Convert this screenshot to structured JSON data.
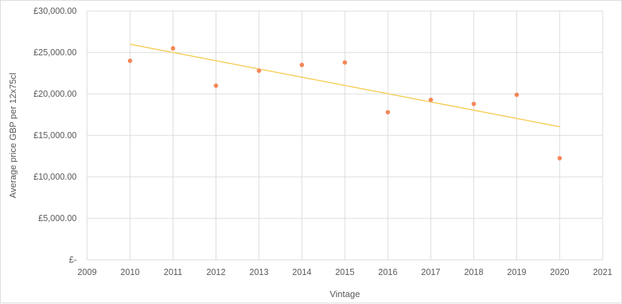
{
  "chart_data": {
    "type": "scatter",
    "xlabel": "Vintage",
    "ylabel": "Average price GBP per 12x75cl",
    "xlim": [
      2009,
      2021
    ],
    "ylim": [
      0,
      30000
    ],
    "x_ticks": [
      2009,
      2010,
      2011,
      2012,
      2013,
      2014,
      2015,
      2016,
      2017,
      2018,
      2019,
      2020,
      2021
    ],
    "x_tick_labels": [
      "2009",
      "2010",
      "2011",
      "2012",
      "2013",
      "2014",
      "2015",
      "2016",
      "2017",
      "2018",
      "2019",
      "2020",
      "2021"
    ],
    "y_ticks": [
      0,
      5000,
      10000,
      15000,
      20000,
      25000,
      30000
    ],
    "y_tick_labels": [
      "£-",
      "£5,000.00",
      "£10,000.00",
      "£15,000.00",
      "£20,000.00",
      "£25,000.00",
      "£30,000.00"
    ],
    "grid": "both",
    "series": [
      {
        "x": [
          2010,
          2011,
          2012,
          2013,
          2014,
          2015,
          2016,
          2017,
          2018,
          2019,
          2020
        ],
        "y": [
          24000,
          25500,
          21000,
          22800,
          23500,
          23800,
          17800,
          19300,
          18800,
          19900,
          12250
        ],
        "color": "#f4875a"
      }
    ],
    "trendline": {
      "type": "linear",
      "x": [
        2010,
        2020
      ],
      "y": [
        26000,
        16050
      ],
      "color": "#f5cc52"
    }
  }
}
